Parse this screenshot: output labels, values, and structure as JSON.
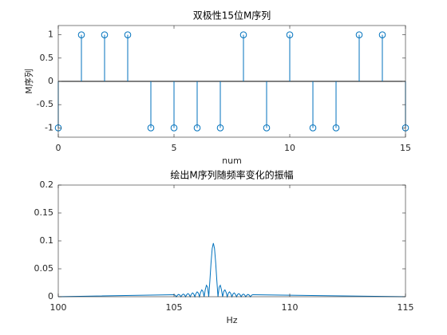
{
  "chart_data": [
    {
      "type": "stem",
      "title": "双极性15位M序列",
      "xlabel": "num",
      "ylabel": "M序列",
      "x": [
        0,
        1,
        2,
        3,
        4,
        5,
        6,
        7,
        8,
        9,
        10,
        11,
        12,
        13,
        14,
        15
      ],
      "values": [
        -1,
        1,
        1,
        1,
        -1,
        -1,
        -1,
        -1,
        1,
        -1,
        1,
        -1,
        -1,
        1,
        1,
        -1
      ],
      "color": "#0072bd",
      "baseline": 0,
      "xlim": [
        0,
        15
      ],
      "xticks": [
        0,
        5,
        10,
        15
      ],
      "ylim": [
        -1.2,
        1.2
      ],
      "yticks": [
        -1,
        -0.5,
        0,
        0.5,
        1
      ]
    },
    {
      "type": "line",
      "title": "绘出M序列随频率变化的振幅",
      "xlabel": "Hz",
      "x": [
        100,
        105,
        105.05,
        105.1,
        105.15,
        105.2,
        105.25,
        105.3,
        105.35,
        105.4,
        105.45,
        105.5,
        105.55,
        105.6,
        105.65,
        105.7,
        105.75,
        105.8,
        105.85,
        105.9,
        105.95,
        106,
        106.05,
        106.1,
        106.15,
        106.2,
        106.25,
        106.3,
        106.35,
        106.4,
        106.45,
        106.5,
        106.55,
        106.6,
        106.65,
        106.7,
        106.75,
        106.8,
        106.85,
        106.9,
        106.95,
        107,
        107.05,
        107.1,
        107.15,
        107.2,
        107.25,
        107.3,
        107.35,
        107.4,
        107.45,
        107.5,
        107.55,
        107.6,
        107.65,
        107.7,
        107.75,
        107.8,
        107.85,
        107.9,
        107.95,
        108,
        108.05,
        108.1,
        108.15,
        108.2,
        108.25,
        108.3,
        108.35,
        108.4,
        115
      ],
      "values": [
        0,
        0.0036,
        0.0026,
        0,
        0.0028,
        0.0041,
        0.003,
        0,
        0.0032,
        0.0047,
        0.0035,
        0,
        0.0038,
        0.0056,
        0.0041,
        0,
        0.0045,
        0.0068,
        0.0051,
        0,
        0.0058,
        0.0087,
        0.0066,
        0,
        0.0079,
        0.0122,
        0.0096,
        0,
        0.0123,
        0.0204,
        0.0173,
        0,
        0.0288,
        0.0611,
        0.0864,
        0.096,
        0.0864,
        0.0611,
        0.0288,
        0,
        0.0173,
        0.0204,
        0.0123,
        0,
        0.0096,
        0.0122,
        0.0079,
        0,
        0.0066,
        0.0087,
        0.0058,
        0,
        0.0051,
        0.0068,
        0.0045,
        0,
        0.0041,
        0.0056,
        0.0038,
        0,
        0.0035,
        0.0047,
        0.0032,
        0,
        0.003,
        0.0041,
        0.0028,
        0,
        0.0026,
        0.0036,
        0
      ],
      "color": "#0072bd",
      "xlim": [
        100,
        115
      ],
      "xticks": [
        100,
        105,
        110,
        115
      ],
      "ylim": [
        0,
        0.2
      ],
      "yticks": [
        0,
        0.05,
        0.1,
        0.15,
        0.2
      ]
    }
  ]
}
